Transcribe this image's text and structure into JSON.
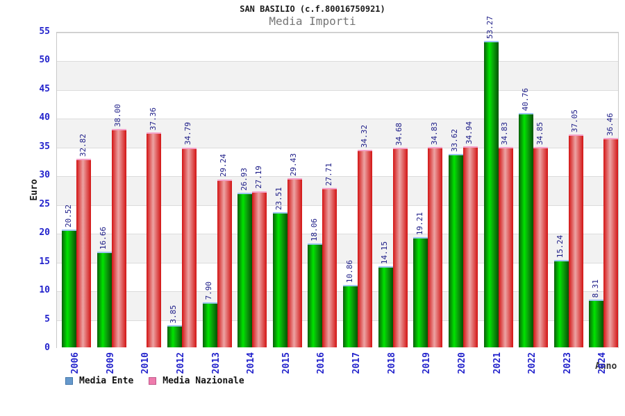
{
  "header": {
    "title": "SAN BASILIO (c.f.80016750921)",
    "subtitle": "Media Importi"
  },
  "chart_data": {
    "type": "bar",
    "title": "SAN BASILIO (c.f.80016750921)",
    "subtitle": "Media Importi",
    "xlabel": "Anno",
    "ylabel": "Euro",
    "ylim": [
      0,
      55
    ],
    "ytick_step": 5,
    "grid": "horizontal-bands-alternating",
    "legend_position": "bottom-left",
    "value_label_format": "2-decimals-rotated-90",
    "categories": [
      "2006",
      "2009",
      "2010",
      "2012",
      "2013",
      "2014",
      "2015",
      "2016",
      "2017",
      "2018",
      "2019",
      "2020",
      "2021",
      "2022",
      "2023",
      "2024"
    ],
    "series": [
      {
        "name": "Media Ente",
        "bar_color": "#00C400",
        "legend_swatch_fill": "#6699cc",
        "legend_swatch_border": "#4477aa",
        "values": [
          20.52,
          16.66,
          null,
          3.85,
          7.9,
          26.93,
          23.51,
          18.06,
          10.86,
          14.15,
          19.21,
          33.62,
          53.27,
          40.76,
          15.24,
          8.31
        ]
      },
      {
        "name": "Media Nazionale",
        "bar_color": "#D93030",
        "legend_swatch_fill": "#ee7bac",
        "legend_swatch_border": "#c0598c",
        "values": [
          32.82,
          38.0,
          37.36,
          34.79,
          29.24,
          27.19,
          29.43,
          27.71,
          34.32,
          34.68,
          34.83,
          34.94,
          34.83,
          34.85,
          37.05,
          36.46
        ]
      }
    ],
    "colors": {
      "tick_label": "#2323cc",
      "value_label": "#1a1a86",
      "band_gray": "#f2f2f2",
      "band_white": "#ffffff",
      "subtitle_gray": "#757575"
    }
  }
}
